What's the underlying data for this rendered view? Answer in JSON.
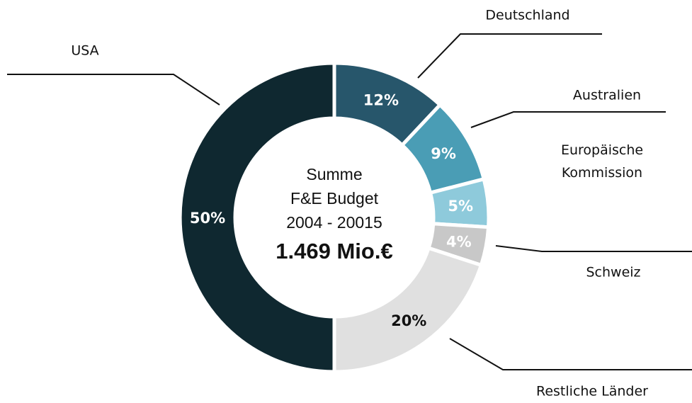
{
  "chart_data": {
    "type": "pie",
    "categories": [
      "Deutschland",
      "Australien",
      "Europäische Kommission",
      "Schweiz",
      "Restliche Länder",
      "USA"
    ],
    "values": [
      12,
      9,
      5,
      4,
      20,
      50
    ],
    "value_labels": [
      "12%",
      "9%",
      "5%",
      "4%",
      "20%",
      "50%"
    ],
    "colors": [
      "#27566b",
      "#4a9db5",
      "#8ecadb",
      "#c8c8c8",
      "#e0e0e0",
      "#0f2830"
    ],
    "label_colors": [
      "#ffffff",
      "#ffffff",
      "#ffffff",
      "#ffffff",
      "#111111",
      "#ffffff"
    ],
    "center_text": [
      "Summe",
      "F&E Budget",
      "2004 - 20015"
    ],
    "total_label": "1.469 Mio.€"
  }
}
